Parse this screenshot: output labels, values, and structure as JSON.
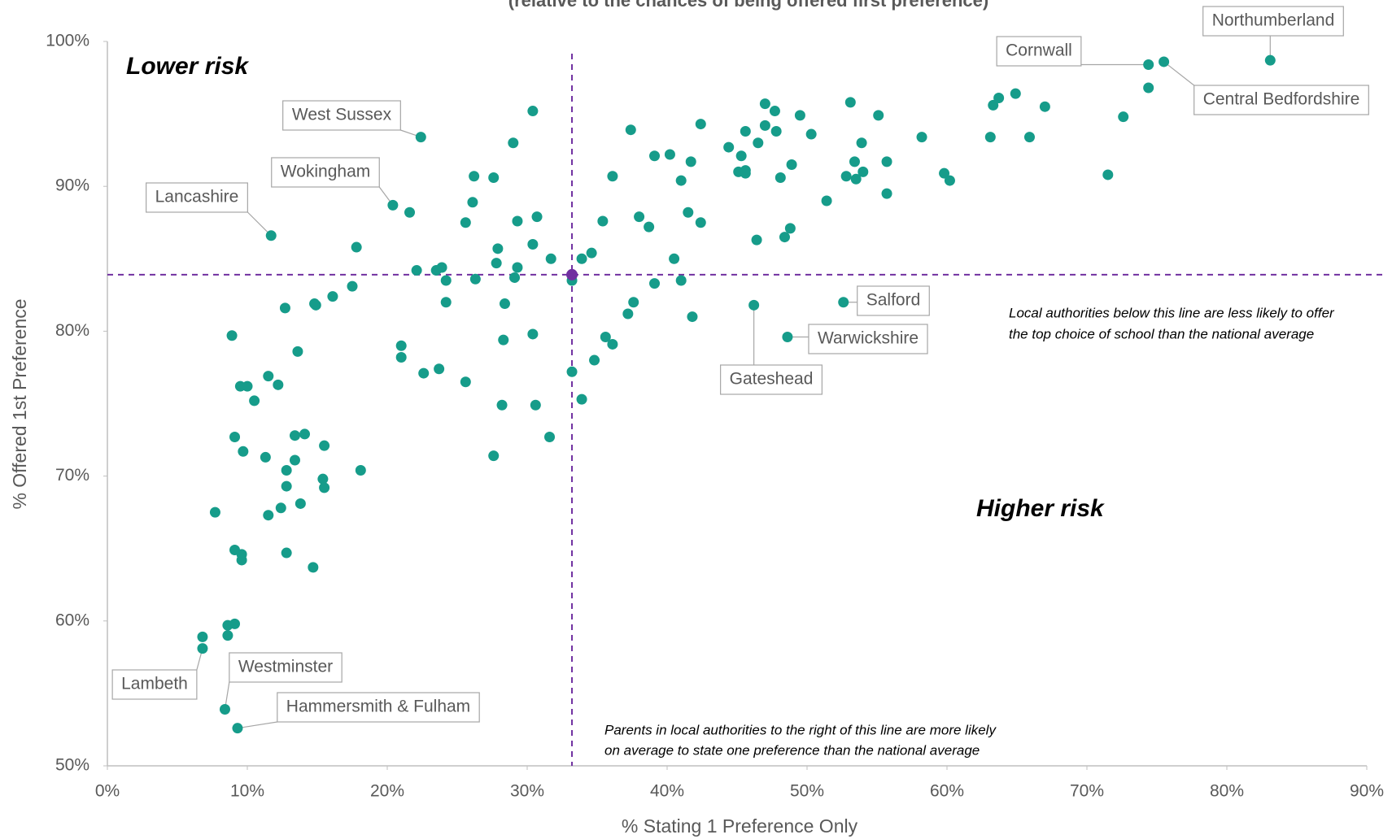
{
  "chart_data": {
    "type": "scatter",
    "subtitle": "(relative to the chances of being offered first preference)",
    "x_label": "% Stating 1 Preference Only",
    "y_label": "% Offered 1st Preference",
    "xlim": [
      0,
      90
    ],
    "ylim": [
      50,
      100
    ],
    "xticks": [
      {
        "value": 0,
        "label": "0%"
      },
      {
        "value": 10,
        "label": "10%"
      },
      {
        "value": 20,
        "label": "20%"
      },
      {
        "value": 30,
        "label": "30%"
      },
      {
        "value": 40,
        "label": "40%"
      },
      {
        "value": 50,
        "label": "50%"
      },
      {
        "value": 60,
        "label": "60%"
      },
      {
        "value": 70,
        "label": "70%"
      },
      {
        "value": 80,
        "label": "80%"
      },
      {
        "value": 90,
        "label": "90%"
      }
    ],
    "yticks": [
      {
        "value": 50,
        "label": "50%"
      },
      {
        "value": 60,
        "label": "60%"
      },
      {
        "value": 70,
        "label": "70%"
      },
      {
        "value": 80,
        "label": "80%"
      },
      {
        "value": 90,
        "label": "90%"
      },
      {
        "value": 100,
        "label": "100%"
      }
    ],
    "series": [
      {
        "color": "#169c8a",
        "x": [
          6.8,
          8.6,
          9.1,
          8.6,
          9.1,
          9.6,
          9.6,
          7.7,
          8.9,
          9.1,
          9.7,
          9.5,
          10.0,
          10.5,
          11.5,
          12.2,
          11.3,
          11.5,
          12.4,
          12.8,
          12.8,
          13.4,
          14.1,
          13.4,
          13.8,
          12.8,
          14.7,
          15.5,
          15.4,
          15.5,
          18.1,
          12.7,
          13.6,
          14.8,
          14.9,
          16.1,
          17.5,
          17.8,
          21.6,
          22.1,
          23.5,
          23.9,
          24.2,
          24.2,
          21.0,
          21.0,
          22.6,
          23.7,
          25.6,
          25.6,
          26.1,
          26.2,
          26.3,
          27.6,
          27.8,
          27.9,
          28.4,
          28.3,
          28.2,
          27.6,
          29.0,
          29.3,
          29.1,
          29.3,
          30.4,
          30.4,
          30.7,
          31.7,
          30.4,
          30.6,
          31.6,
          33.2,
          33.2,
          33.9,
          34.6,
          33.9,
          34.8,
          35.4,
          35.6,
          36.1,
          36.1,
          37.4,
          37.6,
          37.2,
          38.0,
          38.7,
          39.1,
          40.2,
          39.1,
          40.5,
          41.0,
          41.7,
          41.5,
          41.0,
          41.8,
          42.4,
          42.4,
          44.4,
          45.3,
          45.6,
          45.1,
          45.6,
          45.6,
          46.5,
          47.0,
          47.0,
          47.7,
          47.8,
          48.1,
          48.9,
          48.8,
          48.4,
          46.4,
          49.5,
          50.3,
          51.4,
          53.1,
          52.8,
          53.4,
          53.5,
          53.9,
          54.0,
          55.1,
          55.7,
          55.7,
          58.2,
          59.8,
          60.2,
          63.1,
          63.3,
          63.7,
          64.9,
          65.9,
          67.0,
          71.5,
          72.6,
          74.4
        ],
        "y": [
          58.9,
          59.7,
          59.8,
          59.0,
          64.9,
          64.6,
          64.2,
          67.5,
          79.7,
          72.7,
          71.7,
          76.2,
          76.2,
          75.2,
          76.9,
          76.3,
          71.3,
          67.3,
          67.8,
          69.3,
          70.4,
          72.8,
          72.9,
          71.1,
          68.1,
          64.7,
          63.7,
          72.1,
          69.8,
          69.2,
          70.4,
          81.6,
          78.6,
          81.9,
          81.8,
          82.4,
          83.1,
          85.8,
          88.2,
          84.2,
          84.2,
          84.4,
          83.5,
          82.0,
          79.0,
          78.2,
          77.1,
          77.4,
          76.5,
          87.5,
          88.9,
          90.7,
          83.6,
          90.6,
          84.7,
          85.7,
          81.9,
          79.4,
          74.9,
          71.4,
          93.0,
          87.6,
          83.7,
          84.4,
          95.2,
          86.0,
          87.9,
          85.0,
          79.8,
          74.9,
          72.7,
          83.5,
          77.2,
          85.0,
          85.4,
          75.3,
          78.0,
          87.6,
          79.6,
          79.1,
          90.7,
          93.9,
          82.0,
          81.2,
          87.9,
          87.2,
          92.1,
          92.2,
          83.3,
          85.0,
          90.4,
          91.7,
          88.2,
          83.5,
          81.0,
          94.3,
          87.5,
          92.7,
          92.1,
          93.8,
          91.0,
          91.1,
          90.9,
          93.0,
          95.7,
          94.2,
          95.2,
          93.8,
          90.6,
          91.5,
          87.1,
          86.5,
          86.3,
          94.9,
          93.6,
          89.0,
          95.8,
          90.7,
          91.7,
          90.5,
          93.0,
          91.0,
          94.9,
          91.7,
          89.5,
          93.4,
          90.9,
          90.4,
          93.4,
          95.6,
          96.1,
          96.4,
          93.4,
          95.5,
          90.8,
          94.8,
          96.8
        ]
      }
    ],
    "labeled_points": [
      {
        "label": "Northumberland",
        "x": 83.1,
        "y": 98.7
      },
      {
        "label": "Cornwall",
        "x": 74.4,
        "y": 98.4
      },
      {
        "label": "Central Bedfordshire",
        "x": 75.5,
        "y": 98.6
      },
      {
        "label": "West Sussex",
        "x": 22.4,
        "y": 93.4
      },
      {
        "label": "Wokingham",
        "x": 20.4,
        "y": 88.7
      },
      {
        "label": "Lancashire",
        "x": 11.7,
        "y": 86.6
      },
      {
        "label": "Salford",
        "x": 52.6,
        "y": 82.0
      },
      {
        "label": "Warwickshire",
        "x": 48.6,
        "y": 79.6
      },
      {
        "label": "Gateshead",
        "x": 46.2,
        "y": 81.8
      },
      {
        "label": "Lambeth",
        "x": 6.8,
        "y": 58.1
      },
      {
        "label": "Westminster",
        "x": 8.4,
        "y": 53.9
      },
      {
        "label": "Hammersmith & Fulham",
        "x": 9.3,
        "y": 52.6
      }
    ],
    "average": {
      "color": "#7030a0",
      "x": 33.2,
      "y": 83.9
    },
    "annotations": {
      "lower_risk": "Lower risk",
      "higher_risk": "Higher risk",
      "below_line_note": [
        "Local authorities below this line are less likely to offer",
        "the top choice of school than the national average"
      ],
      "right_line_note": [
        "Parents in local authorities to the right of this line are more likely",
        "on average to state one preference than the national average"
      ]
    }
  }
}
